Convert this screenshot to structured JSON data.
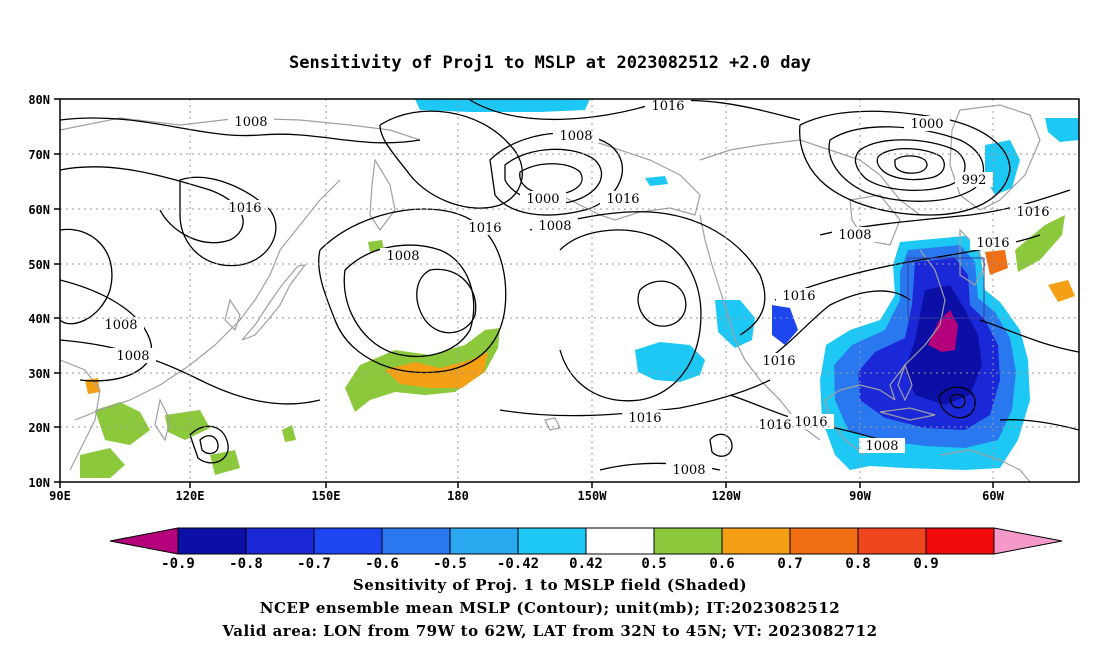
{
  "title": "Sensitivity of Proj1 to MSLP at 2023082512 +2.0 day",
  "map": {
    "lon_ticks": [
      "90E",
      "120E",
      "150E",
      "180",
      "150W",
      "120W",
      "90W",
      "60W"
    ],
    "lat_ticks": [
      "80N",
      "70N",
      "60N",
      "50N",
      "40N",
      "30N",
      "20N",
      "10N"
    ],
    "contour_labels": [
      "1008",
      "1016",
      "1008",
      "1016",
      "1008",
      "1000",
      "1008",
      "1016",
      "1016",
      "1008",
      "1016",
      "1000",
      "992",
      "1008",
      "1016",
      "1016",
      "1008",
      "1008",
      "1016",
      "1016",
      "1016",
      "1008",
      "1016",
      "1008"
    ]
  },
  "colorbar": {
    "tick_labels": [
      "-0.9",
      "-0.8",
      "-0.7",
      "-0.6",
      "-0.5",
      "-0.42",
      "0.42",
      "0.5",
      "0.6",
      "0.7",
      "0.8",
      "0.9"
    ],
    "colors": [
      "#b4007a",
      "#0b0fa6",
      "#1a28d8",
      "#1e46f0",
      "#2a78f0",
      "#2aa8f0",
      "#1ec8f5",
      "#ffffff",
      "#8cc83c",
      "#f5a014",
      "#f06e14",
      "#f0461e",
      "#f00a0a",
      "#f59ac8"
    ]
  },
  "captions": {
    "line1": "Sensitivity of Proj. 1 to MSLP field (Shaded)",
    "line2": "NCEP ensemble mean MSLP (Contour); unit(mb); IT:2023082512",
    "line3": "Valid area: LON from 79W to 62W, LAT from 32N to 45N; VT: 2023082712"
  }
}
